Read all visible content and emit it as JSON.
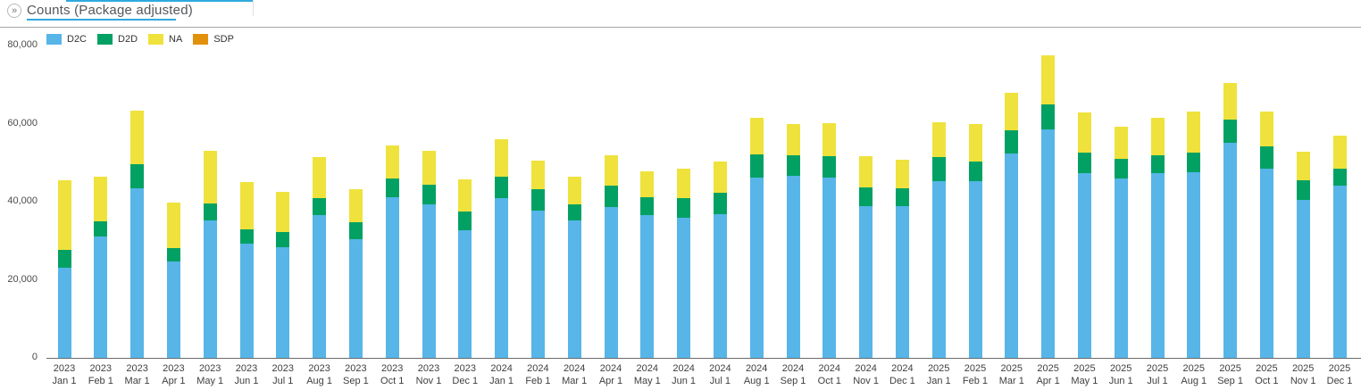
{
  "header": {
    "title": "Counts (Package adjusted)",
    "expand_glyph": "»"
  },
  "legend": [
    {
      "label": "D2C",
      "color": "#57B5E8"
    },
    {
      "label": "D2D",
      "color": "#02A163"
    },
    {
      "label": "NA",
      "color": "#EFE23C"
    },
    {
      "label": "SDP",
      "color": "#E2910C"
    }
  ],
  "chart_data": {
    "type": "bar",
    "stacked": true,
    "title": "Counts (Package adjusted)",
    "grid": false,
    "legend_position": "top-left",
    "ylim": [
      0,
      80000
    ],
    "yticks": [
      0,
      20000,
      40000,
      60000,
      80000
    ],
    "ytick_labels": [
      "0",
      "20,000",
      "40,000",
      "60,000",
      "80,000"
    ],
    "categories": [
      {
        "year": "2023",
        "date": "Jan 1"
      },
      {
        "year": "2023",
        "date": "Feb 1"
      },
      {
        "year": "2023",
        "date": "Mar 1"
      },
      {
        "year": "2023",
        "date": "Apr 1"
      },
      {
        "year": "2023",
        "date": "May 1"
      },
      {
        "year": "2023",
        "date": "Jun 1"
      },
      {
        "year": "2023",
        "date": "Jul 1"
      },
      {
        "year": "2023",
        "date": "Aug 1"
      },
      {
        "year": "2023",
        "date": "Sep 1"
      },
      {
        "year": "2023",
        "date": "Oct 1"
      },
      {
        "year": "2023",
        "date": "Nov 1"
      },
      {
        "year": "2023",
        "date": "Dec 1"
      },
      {
        "year": "2024",
        "date": "Jan 1"
      },
      {
        "year": "2024",
        "date": "Feb 1"
      },
      {
        "year": "2024",
        "date": "Mar 1"
      },
      {
        "year": "2024",
        "date": "Apr 1"
      },
      {
        "year": "2024",
        "date": "May 1"
      },
      {
        "year": "2024",
        "date": "Jun 1"
      },
      {
        "year": "2024",
        "date": "Jul 1"
      },
      {
        "year": "2024",
        "date": "Aug 1"
      },
      {
        "year": "2024",
        "date": "Sep 1"
      },
      {
        "year": "2024",
        "date": "Oct 1"
      },
      {
        "year": "2024",
        "date": "Nov 1"
      },
      {
        "year": "2024",
        "date": "Dec 1"
      },
      {
        "year": "2025",
        "date": "Jan 1"
      },
      {
        "year": "2025",
        "date": "Feb 1"
      },
      {
        "year": "2025",
        "date": "Mar 1"
      },
      {
        "year": "2025",
        "date": "Apr 1"
      },
      {
        "year": "2025",
        "date": "May 1"
      },
      {
        "year": "2025",
        "date": "Jun 1"
      },
      {
        "year": "2025",
        "date": "Jul 1"
      },
      {
        "year": "2025",
        "date": "Aug 1"
      },
      {
        "year": "2025",
        "date": "Sep 1"
      },
      {
        "year": "2025",
        "date": "Oct 1"
      },
      {
        "year": "2025",
        "date": "Nov 1"
      },
      {
        "year": "2025",
        "date": "Dec 1"
      }
    ],
    "series": [
      {
        "name": "D2C",
        "color": "#57B5E8",
        "values": [
          23000,
          31000,
          43400,
          24800,
          35200,
          29200,
          28400,
          36600,
          30300,
          41200,
          39300,
          32800,
          40900,
          37800,
          35100,
          38600,
          36600,
          35800,
          36800,
          46200,
          46600,
          46200,
          38800,
          38800,
          45300,
          45200,
          52300,
          58600,
          47400,
          46000,
          47400,
          47600,
          55000,
          48400,
          40500,
          44100
        ]
      },
      {
        "name": "D2D",
        "color": "#02A163",
        "values": [
          4700,
          3900,
          6300,
          3400,
          4300,
          3800,
          3800,
          4400,
          4400,
          4800,
          5000,
          4800,
          5500,
          5400,
          4300,
          5500,
          4500,
          5200,
          5400,
          5900,
          5300,
          5500,
          4900,
          4700,
          6100,
          5100,
          6100,
          6400,
          5100,
          5000,
          4600,
          4900,
          6100,
          5700,
          5000,
          4300
        ]
      },
      {
        "name": "NA",
        "color": "#EFE23C",
        "values": [
          17900,
          11500,
          13600,
          11500,
          13500,
          12000,
          10400,
          10500,
          8500,
          8300,
          8800,
          8200,
          9500,
          7300,
          7000,
          7700,
          6700,
          7400,
          8100,
          9400,
          8000,
          8400,
          8000,
          7300,
          9000,
          9600,
          9500,
          12600,
          10300,
          8200,
          9400,
          10700,
          9300,
          9100,
          7300,
          8600
        ]
      },
      {
        "name": "SDP",
        "color": "#E2910C",
        "values": [
          0,
          0,
          0,
          0,
          0,
          0,
          0,
          0,
          0,
          0,
          0,
          0,
          0,
          0,
          0,
          0,
          0,
          0,
          0,
          0,
          0,
          0,
          0,
          0,
          0,
          0,
          0,
          0,
          0,
          0,
          0,
          0,
          0,
          0,
          0,
          0
        ]
      }
    ]
  }
}
